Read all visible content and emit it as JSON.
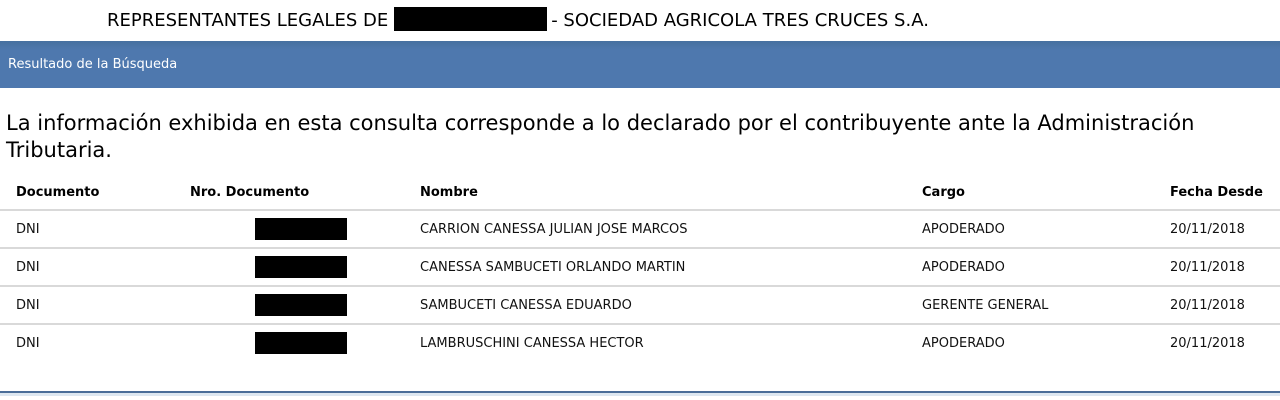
{
  "title": {
    "prefix": "REPRESENTANTES LEGALES DE",
    "redacted_company_id": true,
    "suffix": "- SOCIEDAD AGRICOLA TRES CRUCES S.A."
  },
  "results_header": {
    "label": "Resultado de la Búsqueda"
  },
  "intro": {
    "full_text": "La información exhibida en esta consulta corresponde a lo declarado por el contribuyente ante la Administración Tributaria.",
    "lines": [
      "La información exhibida en esta consulta corresponde a lo declarado por el contribuyente ante la Administración",
      "Tributaria."
    ]
  },
  "table": {
    "columns": [
      "Documento",
      "Nro. Documento",
      "Nombre",
      "Cargo",
      "Fecha Desde"
    ],
    "rows": [
      {
        "documento": "DNI",
        "nro_documento_redacted": true,
        "nombre": "CARRION CANESSA JULIAN JOSE MARCOS",
        "cargo": "APODERADO",
        "fecha_desde": "20/11/2018"
      },
      {
        "documento": "DNI",
        "nro_documento_redacted": true,
        "nombre": "CANESSA SAMBUCETI ORLANDO MARTIN",
        "cargo": "APODERADO",
        "fecha_desde": "20/11/2018"
      },
      {
        "documento": "DNI",
        "nro_documento_redacted": true,
        "nombre": "SAMBUCETI CANESSA EDUARDO",
        "cargo": "GERENTE GENERAL",
        "fecha_desde": "20/11/2018"
      },
      {
        "documento": "DNI",
        "nro_documento_redacted": true,
        "nombre": "LAMBRUSCHINI CANESSA HECTOR",
        "cargo": "APODERADO",
        "fecha_desde": "20/11/2018"
      }
    ]
  },
  "colors": {
    "header_bar_bg": "#4e78ae",
    "header_bar_text": "#ffffff",
    "row_divider": "#d9d9d9",
    "bottom_rule_dark": "#4a6d99",
    "bottom_rule_light": "#dde7f1",
    "redaction": "#000000"
  }
}
